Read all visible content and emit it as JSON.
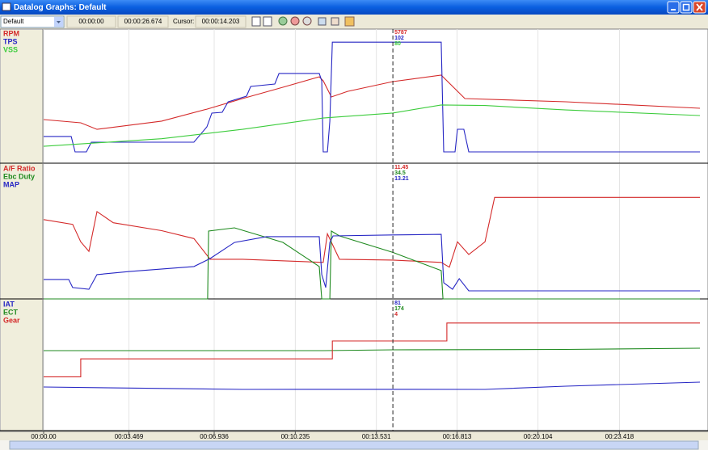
{
  "window": {
    "title": "Datalog Graphs: Default"
  },
  "toolbar": {
    "preset": "Default",
    "start": "00:00:00",
    "end": "00:00:26.674",
    "cursor_label": "Cursor:",
    "cursor": "00:00:14.203"
  },
  "time_axis": {
    "xlim": [
      0,
      26.69
    ],
    "cursor": 14.203,
    "xticks": [
      {
        "value": 0,
        "label": "00:00.00"
      },
      {
        "value": 3.469,
        "label": "00:03.469"
      },
      {
        "value": 6.936,
        "label": "00:06.936"
      },
      {
        "value": 10.235,
        "label": "00:10.235"
      },
      {
        "value": 13.531,
        "label": "00:13.531"
      },
      {
        "value": 16.813,
        "label": "00:16.813"
      },
      {
        "value": 20.104,
        "label": "00:20.104"
      },
      {
        "value": 23.418,
        "label": "00:23.418"
      }
    ]
  },
  "chart_data": [
    {
      "type": "line",
      "series": [
        {
          "name": "RPM",
          "color": "#d42a2a",
          "ylim": [
            0,
            9500
          ],
          "cursor_value": 5787,
          "x": [
            0,
            1.51,
            2.17,
            4.8,
            6.64,
            8.09,
            9.73,
            11.21,
            11.37,
            11.7,
            12.36,
            14.2,
            16.17,
            17.13,
            21.24,
            26.69
          ],
          "values": [
            3090,
            2860,
            2400,
            2980,
            3830,
            4580,
            5380,
            6120,
            5840,
            4690,
            5090,
            5780,
            6240,
            4580,
            4350,
            3890
          ]
        },
        {
          "name": "TPS",
          "color": "#2626c4",
          "ylim": [
            0,
            113
          ],
          "cursor_value": 102,
          "x": [
            0,
            1.12,
            1.28,
            1.74,
            1.94,
            6.11,
            6.64,
            6.84,
            7.26,
            7.5,
            8.25,
            8.42,
            9.4,
            9.57,
            11.21,
            11.31,
            11.37,
            11.54,
            11.64,
            11.74,
            16.17,
            16.27,
            16.73,
            16.83,
            17.09,
            17.29,
            26.69
          ],
          "values": [
            22.5,
            22.5,
            9.5,
            9.5,
            17.7,
            17.7,
            30.6,
            42.2,
            42.9,
            51.7,
            56.5,
            64.7,
            66.7,
            75.6,
            75.6,
            69.4,
            9.5,
            9.5,
            35.4,
            102,
            102,
            9.5,
            9.5,
            28.6,
            28.6,
            9.5,
            9.5
          ]
        },
        {
          "name": "VSS",
          "color": "#3ccc3c",
          "ylim": [
            0,
            214
          ],
          "cursor_value": 80,
          "x": [
            0,
            4.8,
            8.09,
            11.37,
            14.2,
            16.17,
            17.95,
            21.24,
            26.69
          ],
          "values": [
            27,
            39,
            54,
            72,
            80,
            93,
            92,
            85,
            76
          ]
        }
      ]
    },
    {
      "type": "line",
      "series": [
        {
          "name": "A/F Ratio",
          "color": "#d42a2a",
          "ylim": [
            9,
            17.5
          ],
          "cursor_value": 11.45,
          "x": [
            0,
            1.18,
            1.51,
            1.84,
            2.17,
            2.83,
            4.8,
            6.11,
            6.77,
            8.09,
            11.37,
            11.54,
            12.03,
            14.2,
            16.17,
            16.5,
            16.83,
            17.29,
            17.95,
            18.34,
            26.69
          ],
          "values": [
            14.0,
            13.7,
            12.6,
            12.0,
            14.5,
            13.8,
            13.3,
            12.8,
            11.5,
            11.5,
            11.3,
            13.1,
            11.5,
            11.45,
            11.3,
            11.0,
            12.6,
            11.8,
            12.6,
            15.4,
            15.4
          ]
        },
        {
          "name": "Ebc Duty",
          "color": "#1f8a1f",
          "ylim": [
            0,
            100
          ],
          "cursor_value": 34.5,
          "x": [
            0,
            6.67,
            6.71,
            7.76,
            9.73,
            11.21,
            11.31,
            11.64,
            11.7,
            12.03,
            14.2,
            16.17,
            16.24,
            26.69
          ],
          "values": [
            0,
            0,
            50.3,
            52.7,
            41.9,
            24,
            0,
            0,
            50.3,
            46.7,
            34.5,
            21,
            0,
            0
          ]
        },
        {
          "name": "MAP",
          "color": "#2626c4",
          "ylim": [
            -20,
            50
          ],
          "cursor_value": 13.21,
          "x": [
            0,
            1.02,
            1.18,
            1.84,
            2.17,
            3.48,
            6.11,
            6.77,
            7.76,
            9.07,
            11.21,
            11.31,
            11.47,
            11.64,
            11.77,
            14.2,
            16.17,
            16.27,
            16.63,
            16.9,
            17.29,
            26.69
          ],
          "values": [
            -9.9,
            -9.9,
            -14.1,
            -15,
            -7.4,
            -5.8,
            -3.2,
            0.95,
            9.3,
            12.3,
            12.3,
            -7.4,
            -14.1,
            9.3,
            12.7,
            13.21,
            13.5,
            -11.6,
            -15,
            -9.5,
            -15.8,
            -15.8
          ]
        }
      ]
    },
    {
      "type": "line",
      "series": [
        {
          "name": "IAT",
          "color": "#2626c4",
          "ylim": [
            0,
            257
          ],
          "cursor_value": 81,
          "x": [
            0,
            8.09,
            14.2,
            17.95,
            21.24,
            26.69
          ],
          "values": [
            85.6,
            80.9,
            81,
            80.9,
            87.2,
            95.2
          ]
        },
        {
          "name": "ECT",
          "color": "#1f8a1f",
          "ylim": [
            0,
            282
          ],
          "cursor_value": 174,
          "x": [
            0,
            11.37,
            14.2,
            21.24,
            26.69
          ],
          "values": [
            172.4,
            172.4,
            174,
            175,
            177.6
          ]
        },
        {
          "name": "Gear",
          "color": "#d42a2a",
          "ylim": [
            -1,
            6.3
          ],
          "cursor_value": 4,
          "x": [
            0,
            1.51,
            1.51,
            11.74,
            11.74,
            16.4,
            16.4,
            26.69
          ],
          "values": [
            2,
            2,
            3,
            3,
            4,
            4,
            5,
            5
          ]
        }
      ]
    }
  ]
}
